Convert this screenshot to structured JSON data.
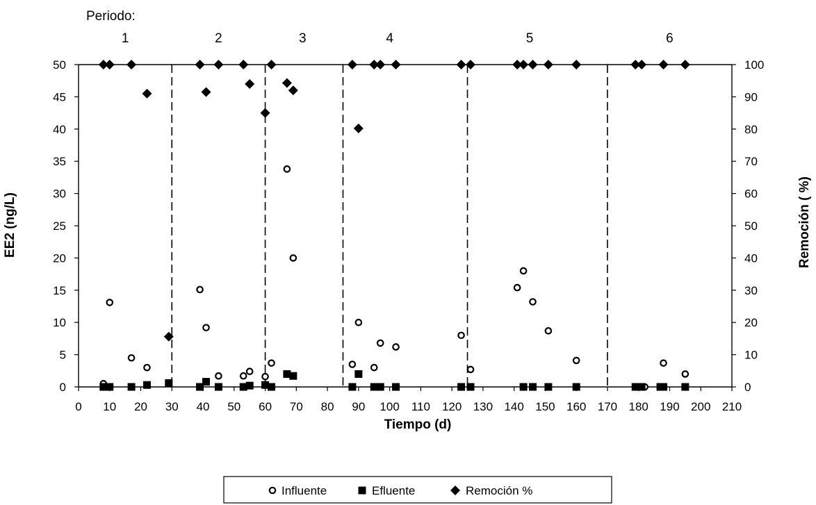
{
  "chart_data": {
    "type": "scatter",
    "period_heading": "Periodo:",
    "periods": [
      {
        "label": "1",
        "center": 15
      },
      {
        "label": "2",
        "center": 45
      },
      {
        "label": "3",
        "center": 72
      },
      {
        "label": "4",
        "center": 100
      },
      {
        "label": "5",
        "center": 145
      },
      {
        "label": "6",
        "center": 190
      }
    ],
    "period_boundaries": [
      30,
      60,
      85,
      125,
      170
    ],
    "xlabel": "Tiempo (d)",
    "ylabel": "EE2 (ng/L)",
    "y2label": "Remoción ( %)",
    "xlim": [
      0,
      210
    ],
    "ylim": [
      0,
      50
    ],
    "y2lim": [
      0,
      100
    ],
    "xticks": [
      "0",
      "10",
      "20",
      "30",
      "40",
      "50",
      "60",
      "70",
      "80",
      "90",
      "100",
      "110",
      "120",
      "130",
      "140",
      "150",
      "160",
      "170",
      "180",
      "190",
      "200",
      "210"
    ],
    "yticks": [
      "0",
      "5",
      "10",
      "15",
      "20",
      "25",
      "30",
      "35",
      "40",
      "45",
      "50"
    ],
    "y2ticks": [
      "0",
      "10",
      "20",
      "30",
      "40",
      "50",
      "60",
      "70",
      "80",
      "90",
      "100"
    ],
    "legend_position": "bottom",
    "series": [
      {
        "name": "Influente",
        "axis": "left",
        "marker": "circle-open",
        "points": [
          [
            8,
            0.5
          ],
          [
            10,
            13.1
          ],
          [
            17,
            4.5
          ],
          [
            22,
            3.0
          ],
          [
            39,
            15.1
          ],
          [
            41,
            9.2
          ],
          [
            45,
            1.7
          ],
          [
            53,
            1.7
          ],
          [
            55,
            2.4
          ],
          [
            60,
            1.6
          ],
          [
            62,
            3.7
          ],
          [
            67,
            33.8
          ],
          [
            69,
            20.0
          ],
          [
            88,
            3.5
          ],
          [
            90,
            10.0
          ],
          [
            95,
            3.0
          ],
          [
            97,
            6.8
          ],
          [
            102,
            6.2
          ],
          [
            123,
            8.0
          ],
          [
            126,
            2.7
          ],
          [
            141,
            15.4
          ],
          [
            143,
            18.0
          ],
          [
            146,
            13.2
          ],
          [
            151,
            8.7
          ],
          [
            160,
            4.1
          ],
          [
            182,
            0
          ],
          [
            188,
            3.7
          ],
          [
            195,
            2.0
          ]
        ]
      },
      {
        "name": "Efluente",
        "axis": "left",
        "marker": "square-filled",
        "points": [
          [
            8,
            0
          ],
          [
            10,
            0
          ],
          [
            17,
            0
          ],
          [
            22,
            0.3
          ],
          [
            29,
            0.6
          ],
          [
            39,
            0
          ],
          [
            41,
            0.8
          ],
          [
            45,
            0
          ],
          [
            53,
            0
          ],
          [
            55,
            0.2
          ],
          [
            60,
            0.3
          ],
          [
            62,
            0
          ],
          [
            67,
            2.0
          ],
          [
            69,
            1.7
          ],
          [
            88,
            0
          ],
          [
            90,
            2.0
          ],
          [
            95,
            0
          ],
          [
            97,
            0
          ],
          [
            102,
            0
          ],
          [
            123,
            0
          ],
          [
            126,
            0
          ],
          [
            143,
            0
          ],
          [
            146,
            0
          ],
          [
            151,
            0
          ],
          [
            160,
            0
          ],
          [
            179,
            0
          ],
          [
            181,
            0
          ],
          [
            187,
            0
          ],
          [
            188,
            0
          ],
          [
            195,
            0
          ]
        ]
      },
      {
        "name": "Remoción %",
        "axis": "right",
        "marker": "diamond-filled",
        "points": [
          [
            8,
            100
          ],
          [
            10,
            100
          ],
          [
            17,
            100
          ],
          [
            22,
            91
          ],
          [
            29,
            15.6
          ],
          [
            39,
            100
          ],
          [
            41,
            91.5
          ],
          [
            45,
            100
          ],
          [
            53,
            100
          ],
          [
            55,
            94
          ],
          [
            60,
            85
          ],
          [
            62,
            100
          ],
          [
            67,
            94.3
          ],
          [
            69,
            92
          ],
          [
            88,
            100
          ],
          [
            90,
            80.2
          ],
          [
            95,
            100
          ],
          [
            97,
            100
          ],
          [
            102,
            100
          ],
          [
            123,
            100
          ],
          [
            126,
            100
          ],
          [
            141,
            100
          ],
          [
            143,
            100
          ],
          [
            146,
            100
          ],
          [
            151,
            100
          ],
          [
            160,
            100
          ],
          [
            179,
            100
          ],
          [
            181,
            100
          ],
          [
            188,
            100
          ],
          [
            195,
            100
          ]
        ]
      }
    ]
  }
}
